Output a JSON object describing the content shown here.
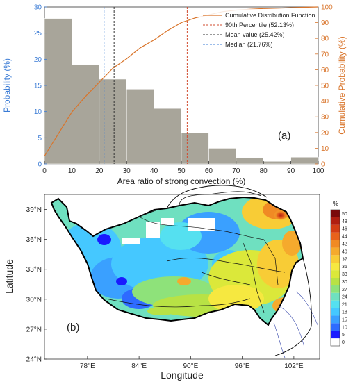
{
  "chart_data": [
    {
      "type": "bar",
      "panel_label": "(a)",
      "xlabel": "Area ratio of strong convection (%)",
      "ylabel": "Probability (%)",
      "y2label": "Cumulative Probability (%)",
      "xlim": [
        0,
        100
      ],
      "ylim": [
        0,
        30
      ],
      "y2lim": [
        0,
        100
      ],
      "xticks": [
        "0",
        "10",
        "20",
        "30",
        "40",
        "50",
        "60",
        "70",
        "80",
        "90",
        "100"
      ],
      "yticks": [
        "0",
        "5",
        "10",
        "15",
        "20",
        "25",
        "30"
      ],
      "y2ticks": [
        "0",
        "10",
        "20",
        "30",
        "40",
        "50",
        "60",
        "70",
        "80",
        "90",
        "100"
      ],
      "bin_edges": [
        0,
        10,
        20,
        30,
        40,
        50,
        60,
        70,
        80,
        90,
        100
      ],
      "values": [
        27.8,
        19.0,
        16.2,
        14.3,
        10.6,
        6.0,
        3.0,
        1.2,
        0.5,
        1.3
      ],
      "cdf": {
        "name": "Cumulative Distribution Function",
        "x": [
          0,
          5,
          10,
          15,
          20,
          25,
          30,
          35,
          40,
          45,
          50,
          55,
          60,
          65,
          70,
          75,
          80,
          85,
          90,
          95,
          100
        ],
        "y": [
          5,
          19,
          33,
          43,
          52,
          61,
          67,
          74,
          79,
          85,
          90,
          93,
          95,
          97,
          98,
          98.5,
          99,
          99.2,
          99.5,
          99.8,
          100
        ]
      },
      "lines": [
        {
          "name": "90th Percentile (52.13%)",
          "x": 52.13,
          "color": "#d24b2e"
        },
        {
          "name": "Mean value (25.42%)",
          "x": 25.42,
          "color": "#333333"
        },
        {
          "name": "Median (21.76%)",
          "x": 21.76,
          "color": "#3a7bd5"
        }
      ],
      "colors": {
        "bars": "#a8a59a",
        "cdf": "#d9742a",
        "left_axis": "#3a7bd5",
        "right_axis": "#d9742a"
      },
      "legend": "top-right",
      "grid": false
    },
    {
      "type": "heatmap",
      "panel_label": "(b)",
      "xlabel": "Longitude",
      "ylabel": "Latitude",
      "xticks": [
        "78°E",
        "84°E",
        "90°E",
        "96°E",
        "102°E"
      ],
      "yticks": [
        "39°N",
        "36°N",
        "33°N",
        "30°N",
        "27°N",
        "24°N"
      ],
      "xlim": [
        73,
        105
      ],
      "ylim": [
        24,
        40.5
      ],
      "colorbar_unit": "%",
      "colorbar_ticks": [
        "0",
        "5",
        "10",
        "15",
        "18",
        "21",
        "24",
        "27",
        "30",
        "33",
        "35",
        "37",
        "40",
        "42",
        "44",
        "46",
        "48",
        "50"
      ],
      "colorbar_colors": [
        "#ffffff",
        "#1a1aff",
        "#2e6bff",
        "#3aa0ff",
        "#45c8ff",
        "#55e0f0",
        "#6fe0c0",
        "#8ee27a",
        "#b8e245",
        "#dbe83a",
        "#f6e840",
        "#f8cc36",
        "#f5aa2d",
        "#f08a24",
        "#e8621c",
        "#d33d14",
        "#b01e10",
        "#7a0a0a"
      ]
    }
  ]
}
